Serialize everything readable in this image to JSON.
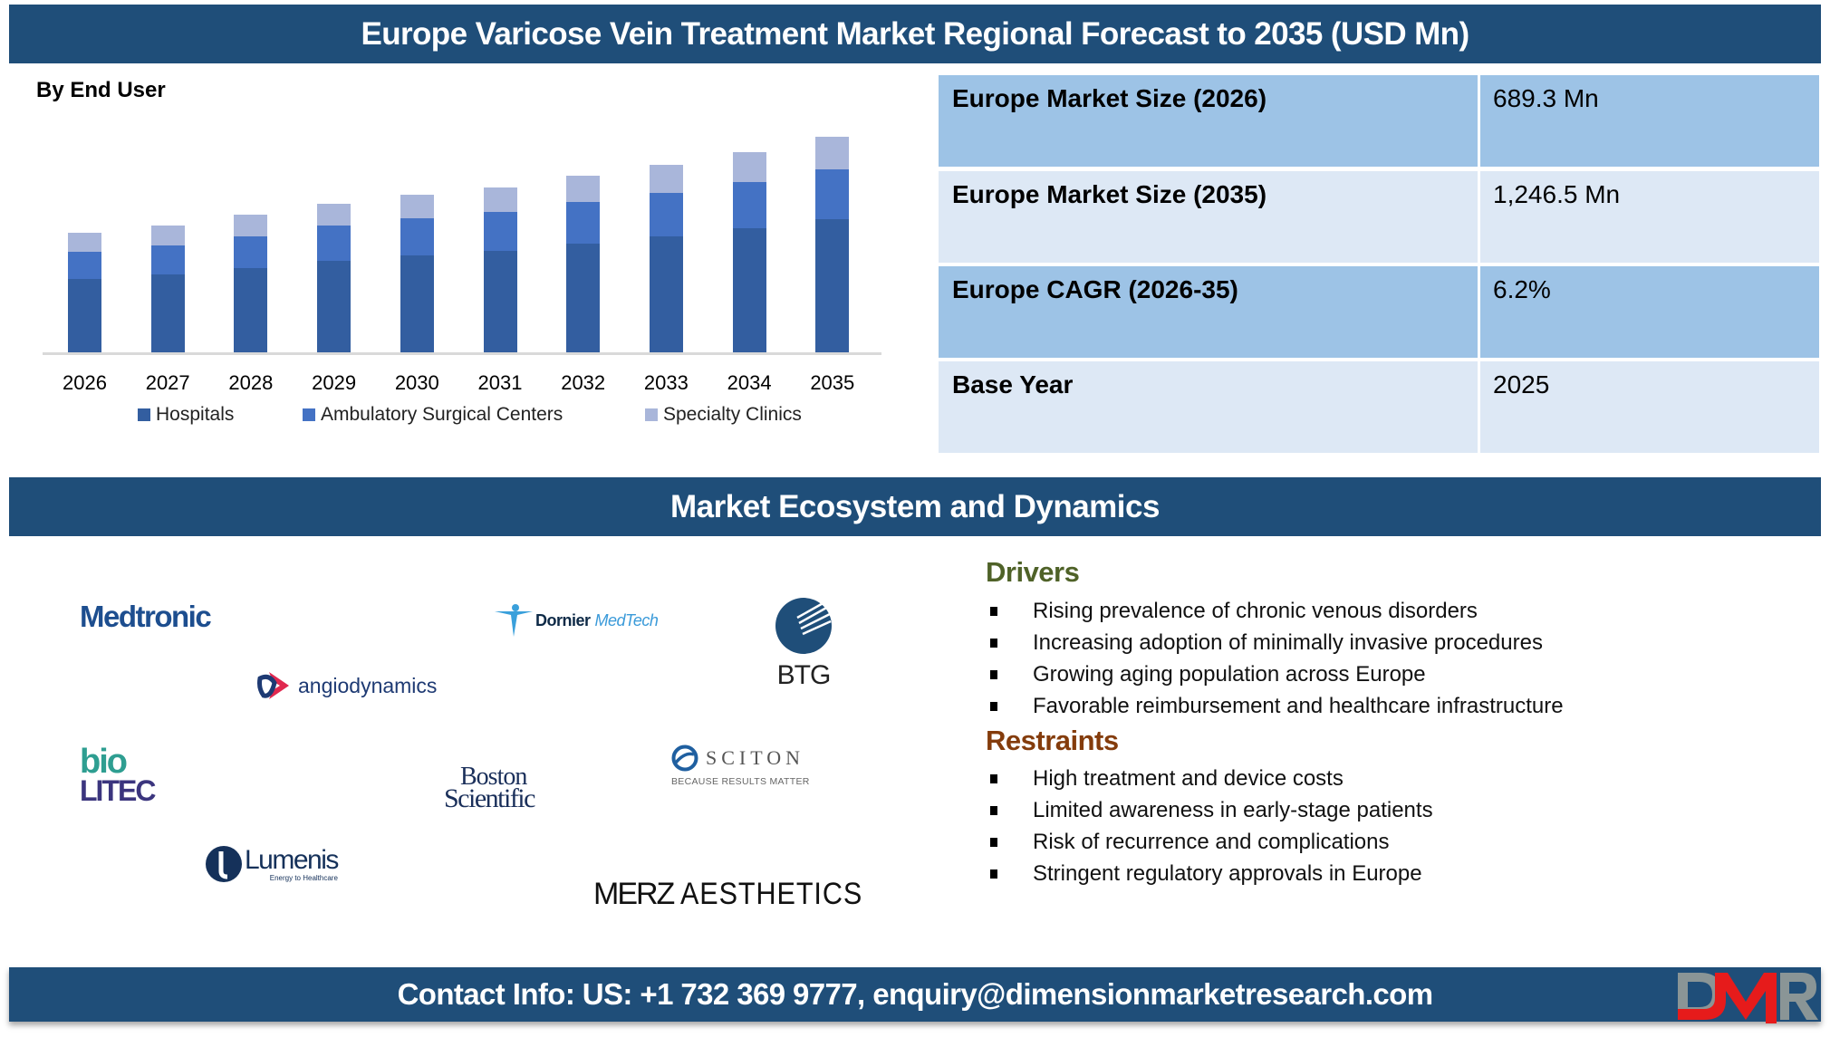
{
  "header": {
    "title": "Europe Varicose Vein Treatment Market Regional Forecast to 2035 (USD Mn)"
  },
  "chart_section": {
    "label": "By End User"
  },
  "chart_data": {
    "type": "bar",
    "stacked": true,
    "title": "By End User",
    "xlabel": "",
    "ylabel": "",
    "categories": [
      "2026",
      "2027",
      "2028",
      "2029",
      "2030",
      "2031",
      "2032",
      "2033",
      "2034",
      "2035"
    ],
    "series": [
      {
        "name": "Hospitals",
        "color": "#335ea0",
        "values": [
          426,
          452,
          489,
          531,
          563,
          589,
          631,
          668,
          715,
          770
        ]
      },
      {
        "name": "Ambulatory Surgical Centers",
        "color": "#4472c4",
        "values": [
          158,
          168,
          184,
          200,
          210,
          221,
          237,
          252,
          268,
          288
        ]
      },
      {
        "name": "Specialty Clinics",
        "color": "#a9b6da",
        "values": [
          105,
          111,
          121,
          126,
          137,
          142,
          153,
          163,
          174,
          188.5
        ]
      }
    ],
    "totals": [
      689.3,
      731,
      794,
      857,
      910,
      952,
      1021,
      1083,
      1157,
      1246.5
    ],
    "ylim": [
      0,
      1300
    ],
    "grid": false,
    "legend_position": "bottom",
    "axis_labels_visible": false
  },
  "legend": [
    {
      "label": "Hospitals",
      "color": "#335ea0"
    },
    {
      "label": "Ambulatory Surgical Centers",
      "color": "#4472c4"
    },
    {
      "label": "Specialty Clinics",
      "color": "#a9b6da"
    }
  ],
  "summary_table": [
    {
      "label": "Europe Market Size (2026)",
      "value": "689.3 Mn"
    },
    {
      "label": "Europe Market Size (2035)",
      "value": "1,246.5 Mn"
    },
    {
      "label": "Europe CAGR (2026-35)",
      "value": "6.2%"
    },
    {
      "label": "Base Year",
      "value": "2025"
    }
  ],
  "ecosystem": {
    "title": "Market Ecosystem and Dynamics",
    "logos": {
      "medtronic": "Medtronic",
      "dornier": {
        "a": "Dornier",
        "b": "MedTech"
      },
      "btg": "BTG",
      "angiodynamics": "angiodynamics",
      "biolitec": {
        "a": "bio",
        "b": "LITEC"
      },
      "boston": {
        "a": "Boston",
        "b": "Scientific"
      },
      "sciton": {
        "name": "SCITON",
        "tagline": "BECAUSE RESULTS MATTER"
      },
      "lumenis": {
        "name": "Lumenis",
        "tagline": "Energy to Healthcare"
      },
      "merz": {
        "a": "MERZ",
        "b": "AESTHETICS"
      }
    }
  },
  "dynamics": {
    "drivers_title": "Drivers",
    "drivers_color": "#4f6228",
    "drivers": [
      "Rising prevalence of chronic venous disorders",
      "Increasing adoption of minimally invasive procedures",
      "Growing aging population across Europe",
      "Favorable reimbursement and healthcare infrastructure"
    ],
    "restraints_title": "Restraints",
    "restraints_color": "#843c0c",
    "restraints": [
      "High treatment and device costs",
      "Limited awareness in early-stage patients",
      "Risk of recurrence and complications",
      "Stringent regulatory approvals in Europe"
    ]
  },
  "footer": {
    "contact": "Contact Info: US: +1 732 369 9777, enquiry@dimensionmarketresearch.com",
    "logo_text": "DMR"
  }
}
